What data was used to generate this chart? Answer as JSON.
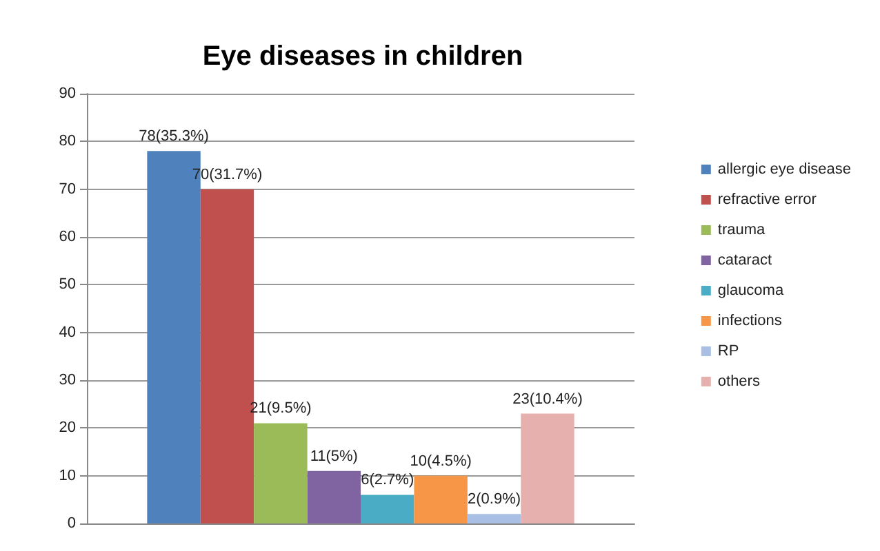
{
  "chart_data": {
    "type": "bar",
    "title": "Eye diseases in children",
    "categories": [
      null
    ],
    "ylim": [
      0,
      90
    ],
    "yticks": [
      0,
      10,
      20,
      30,
      40,
      50,
      60,
      70,
      80,
      90
    ],
    "grid": "y",
    "legend": "right",
    "series": [
      {
        "name": "allergic eye disease",
        "color": "#4f81bd",
        "values": [
          78
        ],
        "value_labels": [
          "78(35.3%)"
        ]
      },
      {
        "name": "refractive error",
        "color": "#c0504d",
        "values": [
          70
        ],
        "value_labels": [
          "70(31.7%)"
        ]
      },
      {
        "name": "trauma",
        "color": "#9bbb59",
        "values": [
          21
        ],
        "value_labels": [
          "21(9.5%)"
        ]
      },
      {
        "name": "cataract",
        "color": "#8064a2",
        "values": [
          11
        ],
        "value_labels": [
          "11(5%)"
        ]
      },
      {
        "name": "glaucoma",
        "color": "#4bacc6",
        "values": [
          6
        ],
        "value_labels": [
          "6(2.7%)"
        ]
      },
      {
        "name": "infections",
        "color": "#f79646",
        "values": [
          10
        ],
        "value_labels": [
          "10(4.5%)"
        ]
      },
      {
        "name": "RP",
        "color": "#a9bfe3",
        "values": [
          2
        ],
        "value_labels": [
          "2(0.9%)"
        ]
      },
      {
        "name": "others",
        "color": "#e6b0ae",
        "values": [
          23
        ],
        "value_labels": [
          "23(10.4%)"
        ]
      }
    ]
  }
}
